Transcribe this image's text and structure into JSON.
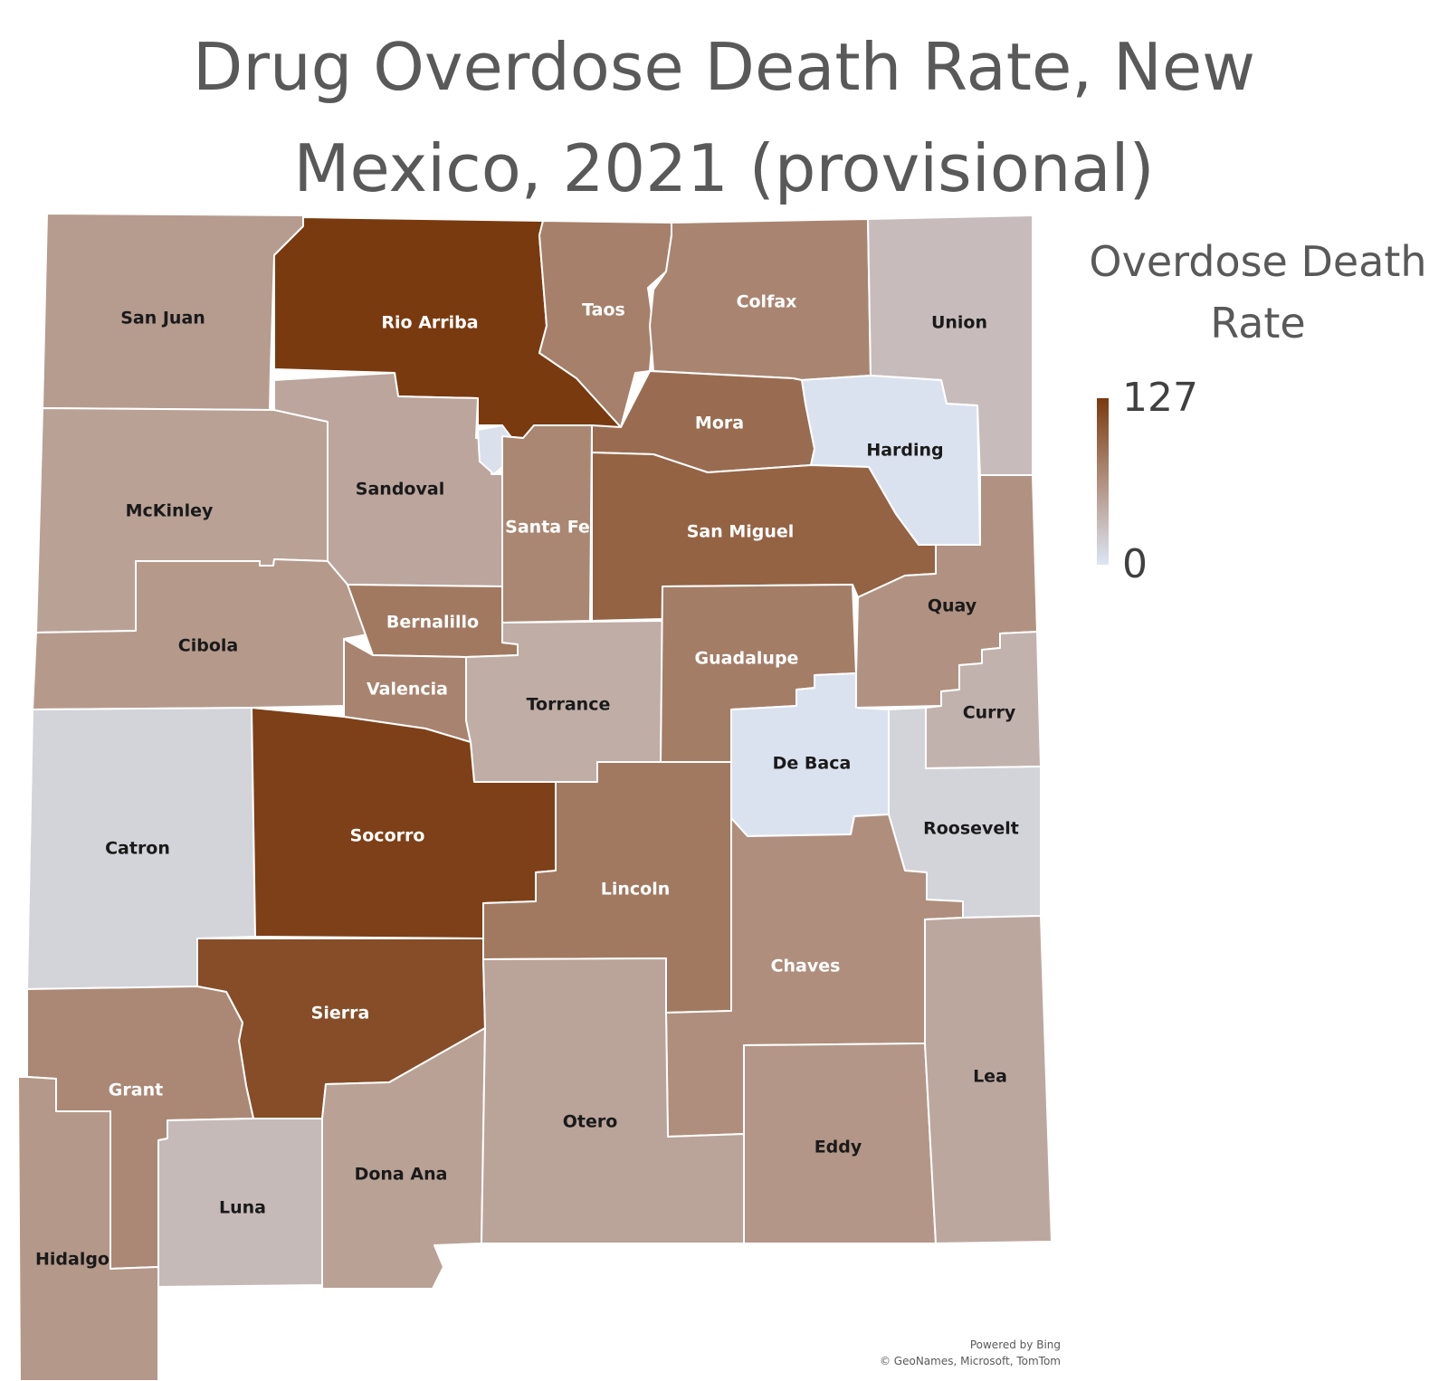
{
  "title": [
    "Drug Overdose Death Rate, New",
    "Mexico, 2021 (provisional)"
  ],
  "legend": {
    "title": [
      "Overdose Death",
      "Rate"
    ],
    "max": "127",
    "min": "0"
  },
  "colors": {
    "high": "#7a3a10",
    "low": "#dde6f4",
    "mid": "#b0907f"
  },
  "credits": [
    "Powered by Bing",
    "© GeoNames, Microsoft, TomTom"
  ],
  "counties": [
    {
      "id": "san-juan",
      "name": "San Juan",
      "level": 0.39
    },
    {
      "id": "rio-arriba",
      "name": "Rio Arriba",
      "level": 1.0
    },
    {
      "id": "taos",
      "name": "Taos",
      "level": 0.55
    },
    {
      "id": "colfax",
      "name": "Colfax",
      "level": 0.52
    },
    {
      "id": "union",
      "name": "Union",
      "level": 0.22
    },
    {
      "id": "mckinley",
      "name": "McKinley",
      "level": 0.36
    },
    {
      "id": "sandoval",
      "name": "Sandoval",
      "level": 0.34
    },
    {
      "id": "los-alamos",
      "name": "",
      "level": 0.03
    },
    {
      "id": "santa-fe",
      "name": "Santa Fe",
      "level": 0.51
    },
    {
      "id": "mora",
      "name": "Mora",
      "level": 0.68
    },
    {
      "id": "harding",
      "name": "Harding",
      "level": 0.02
    },
    {
      "id": "san-miguel",
      "name": "San Miguel",
      "level": 0.74
    },
    {
      "id": "cibola",
      "name": "Cibola",
      "level": 0.4
    },
    {
      "id": "bernalillo",
      "name": "Bernalillo",
      "level": 0.6
    },
    {
      "id": "valencia",
      "name": "Valencia",
      "level": 0.53
    },
    {
      "id": "torrance",
      "name": "Torrance",
      "level": 0.3
    },
    {
      "id": "guadalupe",
      "name": "Guadalupe",
      "level": 0.57
    },
    {
      "id": "quay",
      "name": "Quay",
      "level": 0.44
    },
    {
      "id": "curry",
      "name": "Curry",
      "level": 0.27
    },
    {
      "id": "catron",
      "name": "Catron",
      "level": 0.1
    },
    {
      "id": "socorro",
      "name": "Socorro",
      "level": 0.96
    },
    {
      "id": "de-baca",
      "name": "De Baca",
      "level": 0.02
    },
    {
      "id": "roosevelt",
      "name": "Roosevelt",
      "level": 0.1
    },
    {
      "id": "lincoln",
      "name": "Lincoln",
      "level": 0.6
    },
    {
      "id": "chaves",
      "name": "Chaves",
      "level": 0.46
    },
    {
      "id": "sierra",
      "name": "Sierra",
      "level": 0.88
    },
    {
      "id": "grant",
      "name": "Grant",
      "level": 0.5
    },
    {
      "id": "hidalgo",
      "name": "Hidalgo",
      "level": 0.41
    },
    {
      "id": "luna",
      "name": "Luna",
      "level": 0.23
    },
    {
      "id": "dona-ana",
      "name": "Dona Ana",
      "level": 0.36
    },
    {
      "id": "otero",
      "name": "Otero",
      "level": 0.35
    },
    {
      "id": "eddy",
      "name": "Eddy",
      "level": 0.42
    },
    {
      "id": "lea",
      "name": "Lea",
      "level": 0.33
    }
  ]
}
